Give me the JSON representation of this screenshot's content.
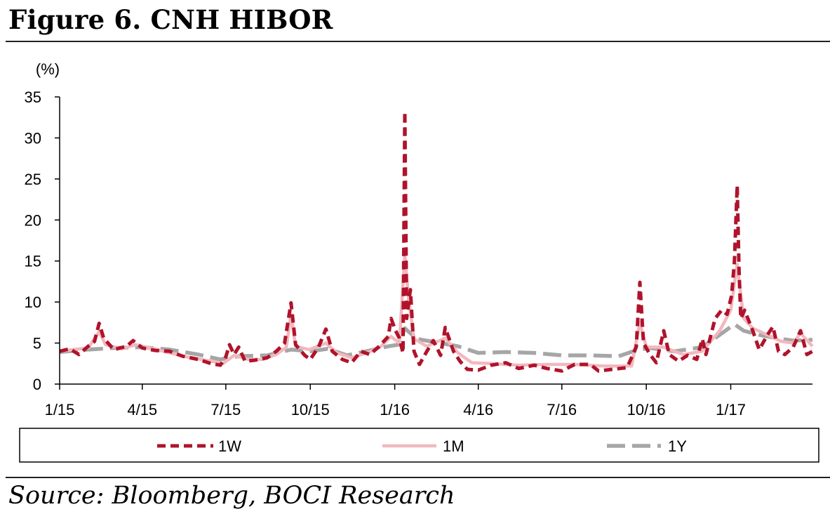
{
  "figure": {
    "title": "Figure 6. CNH HIBOR",
    "source": "Source: Bloomberg, BOCI Research"
  },
  "chart_data": {
    "type": "line",
    "yunit": "(%)",
    "ylim": [
      0,
      35
    ],
    "yticks": [
      0,
      5,
      10,
      15,
      20,
      25,
      30,
      35
    ],
    "xlim": [
      "2015-01-01",
      "2017-03-31"
    ],
    "xticks": [
      {
        "label": "1/15",
        "date": "2015-01-01"
      },
      {
        "label": "4/15",
        "date": "2015-04-01"
      },
      {
        "label": "7/15",
        "date": "2015-07-01"
      },
      {
        "label": "10/15",
        "date": "2015-10-01"
      },
      {
        "label": "1/16",
        "date": "2016-01-01"
      },
      {
        "label": "4/16",
        "date": "2016-04-01"
      },
      {
        "label": "7/16",
        "date": "2016-07-01"
      },
      {
        "label": "10/16",
        "date": "2016-10-01"
      },
      {
        "label": "1/17",
        "date": "2017-01-01"
      }
    ],
    "grid": false,
    "legend_position": "bottom",
    "series": [
      {
        "name": "1W",
        "color": "#b0132b",
        "style": "dashed",
        "points": [
          [
            "2015-01-01",
            4.0
          ],
          [
            "2015-01-12",
            4.3
          ],
          [
            "2015-01-22",
            3.6
          ],
          [
            "2015-02-01",
            4.6
          ],
          [
            "2015-02-08",
            5.2
          ],
          [
            "2015-02-13",
            7.4
          ],
          [
            "2015-02-18",
            5.6
          ],
          [
            "2015-03-01",
            4.2
          ],
          [
            "2015-03-15",
            4.6
          ],
          [
            "2015-03-22",
            5.3
          ],
          [
            "2015-04-01",
            4.4
          ],
          [
            "2015-04-15",
            4.1
          ],
          [
            "2015-05-01",
            4.0
          ],
          [
            "2015-05-15",
            3.4
          ],
          [
            "2015-06-01",
            3.0
          ],
          [
            "2015-06-15",
            2.5
          ],
          [
            "2015-06-25",
            2.3
          ],
          [
            "2015-07-01",
            3.3
          ],
          [
            "2015-07-05",
            4.8
          ],
          [
            "2015-07-10",
            3.6
          ],
          [
            "2015-07-15",
            4.5
          ],
          [
            "2015-07-22",
            2.8
          ],
          [
            "2015-08-01",
            2.9
          ],
          [
            "2015-08-15",
            3.2
          ],
          [
            "2015-08-25",
            4.0
          ],
          [
            "2015-09-03",
            5.0
          ],
          [
            "2015-09-10",
            9.9
          ],
          [
            "2015-09-15",
            4.8
          ],
          [
            "2015-09-25",
            3.5
          ],
          [
            "2015-10-01",
            3.0
          ],
          [
            "2015-10-10",
            4.5
          ],
          [
            "2015-10-18",
            6.7
          ],
          [
            "2015-10-25",
            4.0
          ],
          [
            "2015-11-05",
            3.0
          ],
          [
            "2015-11-15",
            2.6
          ],
          [
            "2015-11-25",
            4.0
          ],
          [
            "2015-12-05",
            3.6
          ],
          [
            "2015-12-15",
            4.6
          ],
          [
            "2015-12-25",
            5.8
          ],
          [
            "2015-12-28",
            8.0
          ],
          [
            "2016-01-02",
            6.5
          ],
          [
            "2016-01-06",
            5.6
          ],
          [
            "2016-01-10",
            3.8
          ],
          [
            "2016-01-12",
            33.2
          ],
          [
            "2016-01-14",
            8.0
          ],
          [
            "2016-01-18",
            11.5
          ],
          [
            "2016-01-22",
            4.0
          ],
          [
            "2016-01-28",
            2.4
          ],
          [
            "2016-02-05",
            4.0
          ],
          [
            "2016-02-12",
            5.3
          ],
          [
            "2016-02-20",
            3.5
          ],
          [
            "2016-02-25",
            6.9
          ],
          [
            "2016-03-05",
            4.0
          ],
          [
            "2016-03-12",
            2.8
          ],
          [
            "2016-03-20",
            1.8
          ],
          [
            "2016-04-01",
            1.7
          ],
          [
            "2016-04-15",
            2.3
          ],
          [
            "2016-05-01",
            2.6
          ],
          [
            "2016-05-15",
            1.9
          ],
          [
            "2016-06-01",
            2.3
          ],
          [
            "2016-06-15",
            1.9
          ],
          [
            "2016-07-01",
            1.6
          ],
          [
            "2016-07-15",
            2.4
          ],
          [
            "2016-08-01",
            2.4
          ],
          [
            "2016-08-10",
            1.6
          ],
          [
            "2016-08-25",
            1.8
          ],
          [
            "2016-09-10",
            2.0
          ],
          [
            "2016-09-20",
            4.5
          ],
          [
            "2016-09-24",
            12.4
          ],
          [
            "2016-09-28",
            5.0
          ],
          [
            "2016-10-05",
            3.6
          ],
          [
            "2016-10-12",
            2.6
          ],
          [
            "2016-10-20",
            6.5
          ],
          [
            "2016-10-26",
            3.6
          ],
          [
            "2016-11-05",
            2.8
          ],
          [
            "2016-11-15",
            3.5
          ],
          [
            "2016-11-25",
            3.0
          ],
          [
            "2016-12-01",
            5.5
          ],
          [
            "2016-12-05",
            3.6
          ],
          [
            "2016-12-15",
            8.0
          ],
          [
            "2016-12-22",
            9.0
          ],
          [
            "2016-12-28",
            8.5
          ],
          [
            "2017-01-02",
            10.8
          ],
          [
            "2017-01-05",
            15.0
          ],
          [
            "2017-01-08",
            24.2
          ],
          [
            "2017-01-10",
            14.0
          ],
          [
            "2017-01-12",
            8.0
          ],
          [
            "2017-01-16",
            9.0
          ],
          [
            "2017-01-25",
            6.5
          ],
          [
            "2017-02-01",
            4.2
          ],
          [
            "2017-02-10",
            6.0
          ],
          [
            "2017-02-16",
            7.0
          ],
          [
            "2017-02-22",
            4.0
          ],
          [
            "2017-03-01",
            3.6
          ],
          [
            "2017-03-10",
            4.5
          ],
          [
            "2017-03-18",
            6.5
          ],
          [
            "2017-03-25",
            3.6
          ],
          [
            "2017-03-31",
            4.0
          ]
        ]
      },
      {
        "name": "1M",
        "color": "#f2b8be",
        "style": "solid",
        "points": [
          [
            "2015-01-01",
            4.0
          ],
          [
            "2015-01-15",
            4.2
          ],
          [
            "2015-02-01",
            4.4
          ],
          [
            "2015-02-13",
            6.4
          ],
          [
            "2015-02-20",
            4.8
          ],
          [
            "2015-03-10",
            4.3
          ],
          [
            "2015-03-25",
            4.8
          ],
          [
            "2015-04-10",
            4.4
          ],
          [
            "2015-05-01",
            3.8
          ],
          [
            "2015-05-20",
            3.3
          ],
          [
            "2015-06-10",
            2.9
          ],
          [
            "2015-06-28",
            2.5
          ],
          [
            "2015-07-10",
            3.5
          ],
          [
            "2015-07-25",
            3.0
          ],
          [
            "2015-08-10",
            3.0
          ],
          [
            "2015-08-25",
            3.6
          ],
          [
            "2015-09-05",
            4.5
          ],
          [
            "2015-09-10",
            8.5
          ],
          [
            "2015-09-15",
            4.6
          ],
          [
            "2015-09-30",
            4.2
          ],
          [
            "2015-10-18",
            5.0
          ],
          [
            "2015-10-30",
            3.8
          ],
          [
            "2015-11-15",
            3.2
          ],
          [
            "2015-12-01",
            3.8
          ],
          [
            "2015-12-15",
            4.4
          ],
          [
            "2015-12-28",
            5.8
          ],
          [
            "2016-01-06",
            5.0
          ],
          [
            "2016-01-12",
            15.8
          ],
          [
            "2016-01-16",
            10.5
          ],
          [
            "2016-01-22",
            5.5
          ],
          [
            "2016-02-05",
            4.6
          ],
          [
            "2016-02-25",
            5.6
          ],
          [
            "2016-03-10",
            3.8
          ],
          [
            "2016-03-25",
            2.6
          ],
          [
            "2016-04-15",
            2.5
          ],
          [
            "2016-05-15",
            2.3
          ],
          [
            "2016-06-15",
            2.4
          ],
          [
            "2016-07-15",
            2.4
          ],
          [
            "2016-08-15",
            2.2
          ],
          [
            "2016-09-15",
            2.2
          ],
          [
            "2016-09-24",
            7.5
          ],
          [
            "2016-10-01",
            4.5
          ],
          [
            "2016-10-20",
            4.5
          ],
          [
            "2016-11-10",
            3.6
          ],
          [
            "2016-12-01",
            4.0
          ],
          [
            "2016-12-20",
            6.5
          ],
          [
            "2017-01-01",
            9.0
          ],
          [
            "2017-01-08",
            14.6
          ],
          [
            "2017-01-15",
            8.0
          ],
          [
            "2017-01-25",
            6.8
          ],
          [
            "2017-02-10",
            6.0
          ],
          [
            "2017-02-25",
            5.2
          ],
          [
            "2017-03-10",
            5.0
          ],
          [
            "2017-03-18",
            6.2
          ],
          [
            "2017-03-31",
            4.6
          ]
        ]
      },
      {
        "name": "1Y",
        "color": "#a6a6a6",
        "style": "dashed",
        "points": [
          [
            "2015-01-01",
            3.9
          ],
          [
            "2015-02-01",
            4.2
          ],
          [
            "2015-03-01",
            4.4
          ],
          [
            "2015-04-01",
            4.5
          ],
          [
            "2015-05-01",
            4.2
          ],
          [
            "2015-06-01",
            3.6
          ],
          [
            "2015-06-25",
            3.0
          ],
          [
            "2015-07-15",
            3.4
          ],
          [
            "2015-08-15",
            3.5
          ],
          [
            "2015-09-10",
            4.2
          ],
          [
            "2015-10-01",
            4.0
          ],
          [
            "2015-10-20",
            4.3
          ],
          [
            "2015-11-10",
            3.5
          ],
          [
            "2015-12-01",
            4.0
          ],
          [
            "2015-12-25",
            4.6
          ],
          [
            "2016-01-05",
            4.8
          ],
          [
            "2016-01-12",
            6.8
          ],
          [
            "2016-01-25",
            5.5
          ],
          [
            "2016-02-20",
            5.0
          ],
          [
            "2016-03-10",
            4.6
          ],
          [
            "2016-04-01",
            3.8
          ],
          [
            "2016-05-01",
            3.9
          ],
          [
            "2016-06-01",
            3.8
          ],
          [
            "2016-07-01",
            3.5
          ],
          [
            "2016-08-01",
            3.5
          ],
          [
            "2016-09-01",
            3.4
          ],
          [
            "2016-09-22",
            4.2
          ],
          [
            "2016-10-05",
            4.4
          ],
          [
            "2016-11-01",
            4.0
          ],
          [
            "2016-12-01",
            4.5
          ],
          [
            "2016-12-20",
            6.0
          ],
          [
            "2017-01-05",
            7.3
          ],
          [
            "2017-01-15",
            6.5
          ],
          [
            "2017-02-01",
            6.0
          ],
          [
            "2017-02-20",
            5.6
          ],
          [
            "2017-03-10",
            5.3
          ],
          [
            "2017-03-31",
            5.4
          ]
        ]
      }
    ]
  }
}
